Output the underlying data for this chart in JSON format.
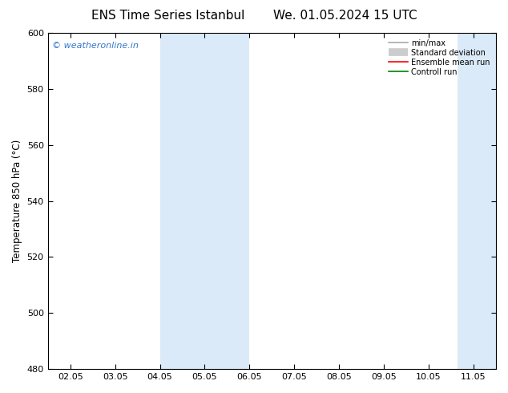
{
  "title": "ENS Time Series Istanbul",
  "title2": "We. 01.05.2024 15 UTC",
  "ylabel": "Temperature 850 hPa (°C)",
  "xlim_dates": [
    "02.05",
    "03.05",
    "04.05",
    "05.05",
    "06.05",
    "07.05",
    "08.05",
    "09.05",
    "10.05",
    "11.05"
  ],
  "ylim": [
    480,
    600
  ],
  "yticks": [
    480,
    500,
    520,
    540,
    560,
    580,
    600
  ],
  "shade_color": "#dbeaf8",
  "shade_bands": [
    {
      "xstart": 2.0,
      "xend": 4.0
    },
    {
      "xstart": 8.7,
      "xend": 9.3
    },
    {
      "xstart": 9.3,
      "xend": 10.0
    }
  ],
  "legend_items": [
    {
      "label": "min/max",
      "color": "#aaaaaa",
      "lw": 1.2
    },
    {
      "label": "Standard deviation",
      "color": "#cccccc",
      "lw": 7
    },
    {
      "label": "Ensemble mean run",
      "color": "#ff0000",
      "lw": 1.2
    },
    {
      "label": "Controll run",
      "color": "#008000",
      "lw": 1.2
    }
  ],
  "watermark": "© weatheronline.in",
  "watermark_color": "#3377cc",
  "background_color": "#ffffff",
  "title_fontsize": 11,
  "tick_fontsize": 8,
  "ylabel_fontsize": 8.5
}
